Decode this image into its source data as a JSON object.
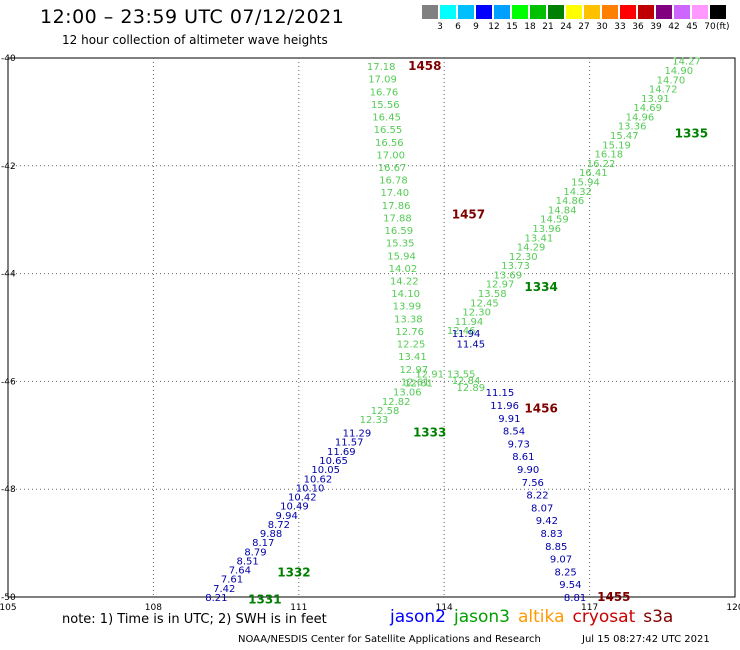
{
  "title": "12:00 – 23:59 UTC 07/12/2021",
  "subtitle": "12 hour collection of altimeter wave heights",
  "legend": {
    "unit": "(ft)",
    "colors": [
      "#808080",
      "#00ffff",
      "#00bfff",
      "#0000ff",
      "#00a0ff",
      "#00ff00",
      "#00c000",
      "#008000",
      "#ffff00",
      "#ffc000",
      "#ff8000",
      "#ff0000",
      "#c00000",
      "#800080",
      "#cc66ff",
      "#ff99ff",
      "#000000"
    ],
    "labels": [
      "3",
      "6",
      "9",
      "12",
      "15",
      "18",
      "21",
      "24",
      "27",
      "30",
      "33",
      "36",
      "39",
      "42",
      "45",
      "70"
    ]
  },
  "map": {
    "lon_ticks": [
      "105",
      "108",
      "111",
      "114",
      "117",
      "120"
    ],
    "lat_ticks": [
      "-40",
      "-42",
      "-44",
      "-46",
      "-48",
      "-50"
    ]
  },
  "passes": [
    {
      "label": "1458",
      "color": "#800000",
      "lon": 113.6,
      "lat": -40.15
    },
    {
      "label": "1457",
      "color": "#800000",
      "lon": 114.5,
      "lat": -42.9
    },
    {
      "label": "1456",
      "color": "#800000",
      "lon": 116.0,
      "lat": -46.5
    },
    {
      "label": "1455",
      "color": "#800000",
      "lon": 117.5,
      "lat": -50.0
    },
    {
      "label": "1335",
      "color": "#008000",
      "lon": 119.1,
      "lat": -41.4
    },
    {
      "label": "1334",
      "color": "#008000",
      "lon": 116.0,
      "lat": -44.25
    },
    {
      "label": "1333",
      "color": "#008000",
      "lon": 113.7,
      "lat": -46.95
    },
    {
      "label": "1332",
      "color": "#008000",
      "lon": 110.9,
      "lat": -49.55
    },
    {
      "label": "1331",
      "color": "#008000",
      "lon": 110.3,
      "lat": -50.05
    }
  ],
  "tracks": [
    {
      "name": "cryosat-1458-track",
      "color": "#55cc55",
      "values": [
        "17.18",
        "17.09",
        "16.76",
        "15.56",
        "16.45",
        "16.55",
        "16.56",
        "17.00",
        "16.67",
        "16.78",
        "17.40",
        "17.86",
        "17.88",
        "16.59",
        "15.35",
        "15.94",
        "14.02",
        "14.22",
        "14.10",
        "13.99",
        "13.38",
        "12.76",
        "12.25",
        "13.41",
        "12.97",
        "12.61"
      ],
      "lon_start": 112.7,
      "lat_start": -40.15,
      "lon_end": 113.4,
      "lat_end": -46.0
    },
    {
      "name": "jason3-1335-track",
      "color": "#55cc55",
      "values": [
        "14.27",
        "14.90",
        "14.70",
        "14.72",
        "13.91",
        "14.69",
        "14.96",
        "13.36",
        "15.47",
        "15.19",
        "16.18",
        "16.22",
        "16.41",
        "15.94",
        "14.32",
        "14.86",
        "14.84",
        "14.59",
        "13.96",
        "13.41",
        "14.29",
        "12.30",
        "13.73",
        "13.69",
        "12.97",
        "13.58",
        "12.45",
        "12.30",
        "11.94",
        "12.46"
      ],
      "lon_start": 119.0,
      "lat_start": -40.05,
      "lon_end": 114.35,
      "lat_end": -45.05
    },
    {
      "name": "jason3-1334-lower-track",
      "color": "#55cc55",
      "values": [
        "13.55",
        "12.84",
        "12.89"
      ],
      "lon_start": 114.35,
      "lat_start": -45.85,
      "lon_end": 114.55,
      "lat_end": -46.1
    },
    {
      "name": "jason3-1333-track",
      "color": "#55cc55",
      "values": [
        "12.91",
        "12.61",
        "13.06",
        "12.82",
        "12.58",
        "12.33"
      ],
      "lon_start": 113.7,
      "lat_start": -45.85,
      "lon_end": 112.55,
      "lat_end": -46.7
    },
    {
      "name": "jason2-1456-upper",
      "color": "#0000aa",
      "values": [
        "11.94",
        "11.45"
      ],
      "lon_start": 114.45,
      "lat_start": -45.1,
      "lon_end": 114.55,
      "lat_end": -45.3
    },
    {
      "name": "jason2-1456-track",
      "color": "#0000aa",
      "values": [
        "11.15",
        "11.96",
        "9.91",
        "8.54",
        "9.73",
        "8.61",
        "9.90",
        "7.56",
        "8.22",
        "8.07",
        "9.42",
        "8.83",
        "8.85",
        "9.07",
        "8.25",
        "9.54",
        "8.81"
      ],
      "lon_start": 115.15,
      "lat_start": -46.2,
      "lon_end": 116.7,
      "lat_end": -50.0
    },
    {
      "name": "jason2-1333-track",
      "color": "#0000aa",
      "values": [
        "11.29",
        "11.57",
        "11.69",
        "10.65",
        "10.05",
        "10.62",
        "10.10",
        "10.42",
        "10.49",
        "9.94",
        "8.72",
        "9.88",
        "8.17",
        "8.79",
        "8.51",
        "7.64",
        "7.61",
        "7.42",
        "8.21"
      ],
      "lon_start": 112.2,
      "lat_start": -46.95,
      "lon_end": 109.3,
      "lat_end": -50.0
    }
  ],
  "note": "note: 1) Time is in UTC; 2) SWH is in feet",
  "satellites": [
    {
      "label": "jason2",
      "color": "#0000ff"
    },
    {
      "label": "jason3",
      "color": "#00a000"
    },
    {
      "label": "altika",
      "color": "#ff9900"
    },
    {
      "label": "cryosat",
      "color": "#cc0000"
    },
    {
      "label": "s3a",
      "color": "#800000"
    }
  ],
  "footer": "NOAA/NESDIS Center for Satellite Applications and Research",
  "footer_time": "Jul 15 08:27:42 UTC 2021"
}
